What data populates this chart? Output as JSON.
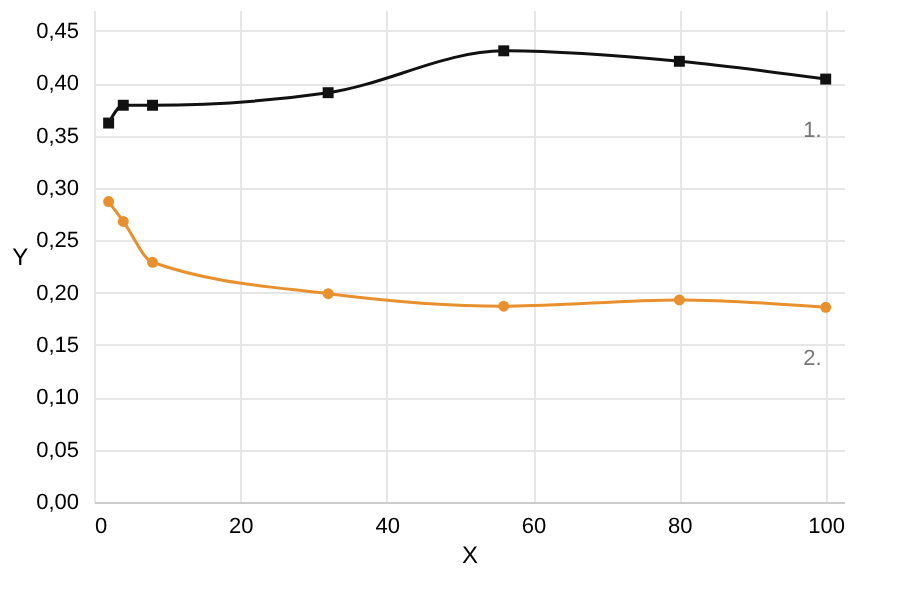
{
  "chart_data": {
    "type": "line",
    "xlabel": "X",
    "ylabel": "Y",
    "xlim": [
      0,
      102.5
    ],
    "ylim": [
      0,
      0.47
    ],
    "xticks": [
      0,
      20,
      40,
      60,
      80,
      100
    ],
    "yticks": [
      {
        "value": 0,
        "label": "0,00"
      },
      {
        "value": 0.05,
        "label": "0,05"
      },
      {
        "value": 0.1,
        "label": "0,10"
      },
      {
        "value": 0.15,
        "label": "0,15"
      },
      {
        "value": 0.2,
        "label": "0,20"
      },
      {
        "value": 0.25,
        "label": "0,25"
      },
      {
        "value": 0.3,
        "label": "0,30"
      },
      {
        "value": 0.35,
        "label": "0,35"
      },
      {
        "value": 0.4,
        "label": "0,40"
      },
      {
        "value": 0.45,
        "label": "0,45"
      }
    ],
    "grid": true,
    "legend": false,
    "line_style": "solid",
    "x": [
      2,
      4,
      8,
      32,
      56,
      80,
      100
    ],
    "series": [
      {
        "name": "1.",
        "color": "#111111",
        "marker": "square",
        "values": [
          0.362,
          0.379,
          0.379,
          0.391,
          0.431,
          0.421,
          0.404
        ]
      },
      {
        "name": "2.",
        "color": "#e8902e",
        "marker": "circle",
        "values": [
          0.287,
          0.268,
          0.229,
          0.199,
          0.187,
          0.193,
          0.186
        ]
      }
    ]
  }
}
